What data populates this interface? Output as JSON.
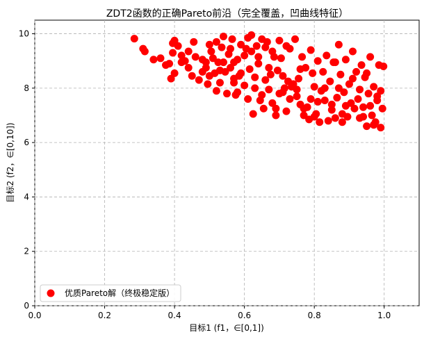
{
  "chart_data": {
    "type": "scatter",
    "title": "ZDT2函数的正确Pareto前沿（完全覆盖，凹曲线特征）",
    "xlabel": "目标1 (f1，∈[0,1])",
    "ylabel": "目标2 (f2，∈[0,10])",
    "xlim": [
      0.0,
      1.1
    ],
    "ylim": [
      0,
      10.5
    ],
    "xticks": [
      "0.0",
      "0.2",
      "0.4",
      "0.6",
      "0.8",
      "1.0"
    ],
    "yticks": [
      "0",
      "2",
      "4",
      "6",
      "8",
      "10"
    ],
    "grid": true,
    "grid_style": "dashed",
    "legend_position": "lower-left",
    "series": [
      {
        "name": "优质Pareto解（终极稳定版）",
        "color": "#ff0000",
        "points": [
          [
            0.285,
            9.82
          ],
          [
            0.31,
            9.45
          ],
          [
            0.315,
            9.35
          ],
          [
            0.34,
            9.05
          ],
          [
            0.36,
            9.1
          ],
          [
            0.375,
            8.85
          ],
          [
            0.385,
            8.9
          ],
          [
            0.39,
            8.35
          ],
          [
            0.395,
            9.65
          ],
          [
            0.395,
            9.3
          ],
          [
            0.41,
            9.55
          ],
          [
            0.4,
            8.55
          ],
          [
            0.42,
            9.2
          ],
          [
            0.43,
            9.0
          ],
          [
            0.44,
            9.35
          ],
          [
            0.45,
            8.45
          ],
          [
            0.455,
            9.7
          ],
          [
            0.47,
            8.3
          ],
          [
            0.48,
            9.05
          ],
          [
            0.49,
            8.75
          ],
          [
            0.495,
            8.15
          ],
          [
            0.5,
            8.45
          ],
          [
            0.505,
            9.35
          ],
          [
            0.51,
            9.1
          ],
          [
            0.515,
            8.55
          ],
          [
            0.52,
            7.9
          ],
          [
            0.525,
            8.95
          ],
          [
            0.53,
            8.2
          ],
          [
            0.535,
            9.5
          ],
          [
            0.54,
            9.9
          ],
          [
            0.545,
            8.6
          ],
          [
            0.55,
            7.8
          ],
          [
            0.555,
            9.25
          ],
          [
            0.56,
            8.75
          ],
          [
            0.565,
            9.8
          ],
          [
            0.57,
            8.35
          ],
          [
            0.575,
            7.75
          ],
          [
            0.58,
            9.05
          ],
          [
            0.585,
            8.45
          ],
          [
            0.59,
            9.6
          ],
          [
            0.6,
            8.1
          ],
          [
            0.605,
            9.45
          ],
          [
            0.61,
            9.85
          ],
          [
            0.615,
            8.7
          ],
          [
            0.62,
            9.35
          ],
          [
            0.625,
            7.05
          ],
          [
            0.63,
            8.4
          ],
          [
            0.635,
            9.55
          ],
          [
            0.64,
            9.15
          ],
          [
            0.645,
            7.55
          ],
          [
            0.65,
            9.8
          ],
          [
            0.655,
            7.25
          ],
          [
            0.66,
            8.3
          ],
          [
            0.665,
            9.7
          ],
          [
            0.67,
            7.95
          ],
          [
            0.675,
            8.5
          ],
          [
            0.68,
            7.45
          ],
          [
            0.685,
            9.15
          ],
          [
            0.69,
            7.0
          ],
          [
            0.695,
            8.65
          ],
          [
            0.7,
            7.8
          ],
          [
            0.705,
            9.1
          ],
          [
            0.71,
            7.85
          ],
          [
            0.715,
            8.0
          ],
          [
            0.72,
            7.15
          ],
          [
            0.725,
            8.25
          ],
          [
            0.73,
            9.45
          ],
          [
            0.735,
            8.05
          ],
          [
            0.74,
            8.15
          ],
          [
            0.745,
            9.8
          ],
          [
            0.75,
            7.95
          ],
          [
            0.755,
            8.35
          ],
          [
            0.76,
            7.4
          ],
          [
            0.765,
            9.15
          ],
          [
            0.77,
            7.25
          ],
          [
            0.775,
            8.75
          ],
          [
            0.78,
            7.3
          ],
          [
            0.785,
            6.85
          ],
          [
            0.79,
            9.4
          ],
          [
            0.795,
            8.55
          ],
          [
            0.8,
            8.05
          ],
          [
            0.805,
            7.05
          ],
          [
            0.81,
            9.0
          ],
          [
            0.815,
            6.75
          ],
          [
            0.82,
            7.9
          ],
          [
            0.825,
            8.6
          ],
          [
            0.83,
            7.55
          ],
          [
            0.835,
            9.2
          ],
          [
            0.84,
            6.8
          ],
          [
            0.845,
            8.25
          ],
          [
            0.85,
            7.2
          ],
          [
            0.855,
            8.95
          ],
          [
            0.86,
            6.9
          ],
          [
            0.865,
            7.65
          ],
          [
            0.87,
            9.6
          ],
          [
            0.875,
            8.5
          ],
          [
            0.88,
            7.05
          ],
          [
            0.885,
            7.85
          ],
          [
            0.89,
            9.05
          ],
          [
            0.895,
            6.95
          ],
          [
            0.9,
            8.15
          ],
          [
            0.905,
            7.45
          ],
          [
            0.91,
            9.35
          ],
          [
            0.915,
            7.25
          ],
          [
            0.92,
            8.6
          ],
          [
            0.925,
            7.6
          ],
          [
            0.93,
            6.9
          ],
          [
            0.935,
            8.85
          ],
          [
            0.94,
            7.3
          ],
          [
            0.945,
            8.4
          ],
          [
            0.95,
            6.6
          ],
          [
            0.955,
            7.8
          ],
          [
            0.96,
            9.15
          ],
          [
            0.965,
            7.0
          ],
          [
            0.97,
            8.05
          ],
          [
            0.975,
            6.75
          ],
          [
            0.98,
            7.55
          ],
          [
            0.985,
            8.85
          ],
          [
            0.99,
            6.55
          ],
          [
            0.995,
            7.25
          ],
          [
            0.998,
            8.8
          ],
          [
            0.97,
            6.65
          ],
          [
            0.96,
            7.35
          ],
          [
            0.94,
            6.95
          ],
          [
            0.99,
            7.9
          ],
          [
            0.88,
            6.75
          ],
          [
            0.86,
            8.95
          ],
          [
            0.8,
            6.95
          ],
          [
            0.76,
            8.7
          ],
          [
            0.72,
            9.55
          ],
          [
            0.68,
            9.35
          ],
          [
            0.64,
            8.9
          ],
          [
            0.6,
            9.2
          ],
          [
            0.58,
            7.85
          ],
          [
            0.56,
            9.45
          ],
          [
            0.52,
            9.7
          ],
          [
            0.5,
            9.6
          ],
          [
            0.48,
            8.6
          ],
          [
            0.46,
            9.15
          ],
          [
            0.44,
            8.75
          ],
          [
            0.42,
            8.95
          ],
          [
            0.4,
            9.75
          ],
          [
            0.62,
            9.95
          ],
          [
            0.66,
            9.5
          ],
          [
            0.7,
            9.75
          ],
          [
            0.54,
            8.95
          ],
          [
            0.57,
            8.95
          ],
          [
            0.59,
            8.55
          ],
          [
            0.63,
            8.0
          ],
          [
            0.67,
            8.75
          ],
          [
            0.71,
            8.45
          ],
          [
            0.75,
            7.7
          ],
          [
            0.79,
            7.6
          ],
          [
            0.83,
            8.0
          ],
          [
            0.87,
            8.0
          ],
          [
            0.91,
            8.35
          ],
          [
            0.95,
            8.55
          ],
          [
            0.98,
            7.7
          ],
          [
            0.93,
            7.95
          ],
          [
            0.89,
            7.35
          ],
          [
            0.85,
            7.4
          ],
          [
            0.81,
            7.5
          ],
          [
            0.77,
            7.0
          ],
          [
            0.73,
            7.6
          ],
          [
            0.69,
            7.25
          ],
          [
            0.65,
            7.75
          ],
          [
            0.61,
            7.6
          ],
          [
            0.57,
            8.2
          ],
          [
            0.53,
            8.65
          ],
          [
            0.49,
            8.95
          ]
        ]
      }
    ]
  }
}
